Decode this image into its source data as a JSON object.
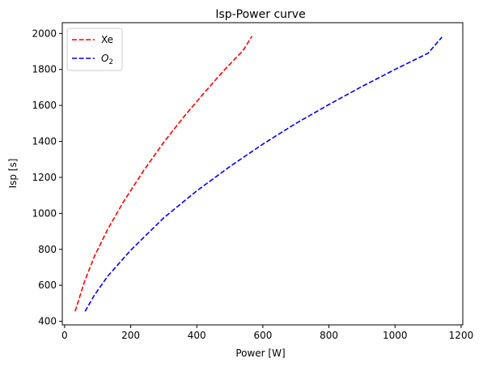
{
  "chart_data": {
    "type": "line",
    "title": "Isp-Power curve",
    "xlabel": "Power [W]",
    "ylabel": "Isp [s]",
    "xlim": [
      -7,
      1205
    ],
    "ylim": [
      380,
      2060
    ],
    "xticks": [
      0,
      200,
      400,
      600,
      800,
      1000,
      1200
    ],
    "yticks": [
      400,
      600,
      800,
      1000,
      1200,
      1400,
      1600,
      1800,
      2000
    ],
    "grid": false,
    "legend": "top-left",
    "series": [
      {
        "name": "Xe",
        "label_base": "Xe",
        "label_sub": "",
        "color": "#ff0000",
        "style": "dashed",
        "x": [
          32,
          60,
          90,
          130,
          180,
          240,
          300,
          360,
          420,
          480,
          540,
          567
        ],
        "y": [
          455,
          620,
          760,
          910,
          1070,
          1240,
          1395,
          1535,
          1665,
          1790,
          1905,
          1985
        ]
      },
      {
        "name": "O2",
        "label_base": "O",
        "label_sub": "2",
        "color": "#0000ff",
        "style": "dashed",
        "x": [
          62,
          90,
          130,
          200,
          300,
          400,
          500,
          600,
          700,
          800,
          900,
          1000,
          1100,
          1142
        ],
        "y": [
          455,
          545,
          650,
          795,
          975,
          1125,
          1260,
          1385,
          1500,
          1605,
          1705,
          1800,
          1890,
          1980
        ]
      }
    ]
  }
}
